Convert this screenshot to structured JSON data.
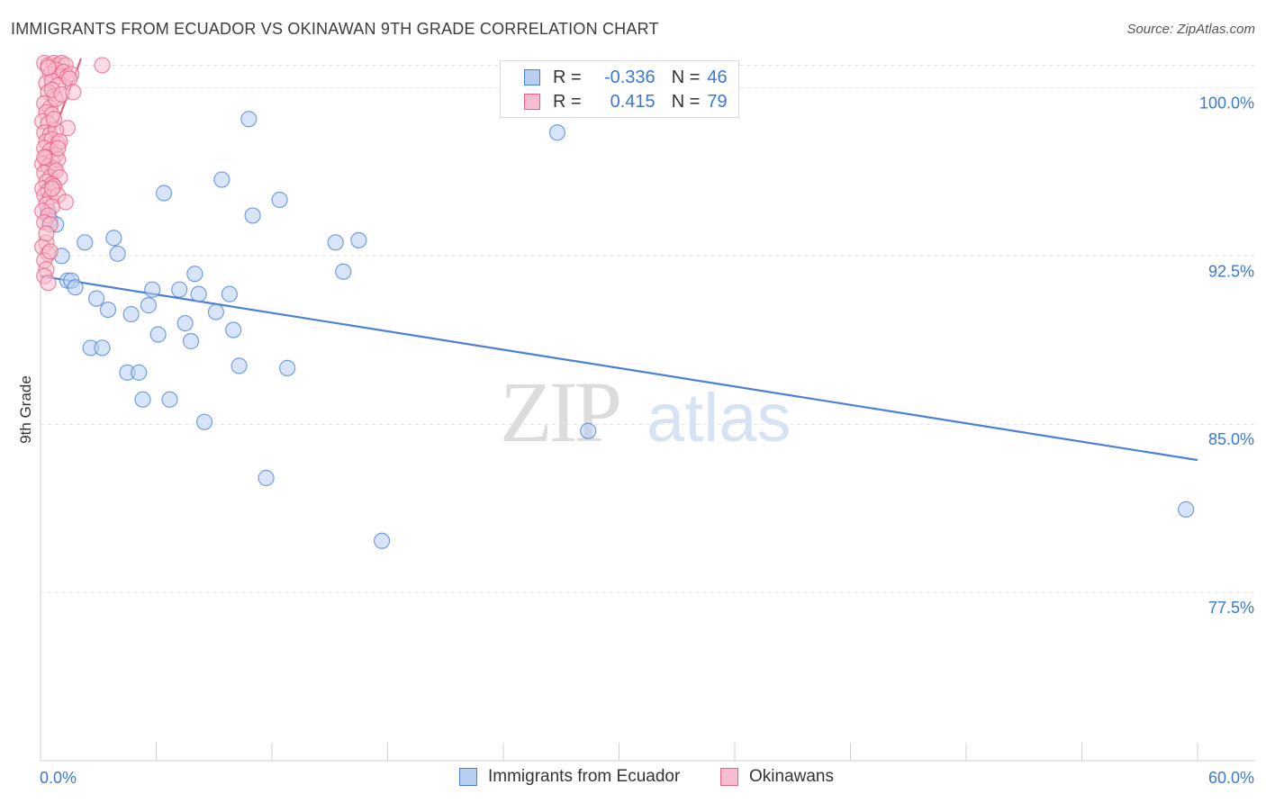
{
  "chart_data": {
    "type": "scatter",
    "title": "IMMIGRANTS FROM ECUADOR VS OKINAWAN 9TH GRADE CORRELATION CHART",
    "source": "Source: ZipAtlas.com",
    "watermark": {
      "zip": "ZIP",
      "atlas": "atlas"
    },
    "ylabel": "9th Grade",
    "xlim": [
      0,
      60
    ],
    "ylim": [
      70,
      101.5
    ],
    "x_tick_labels": [
      "0.0%",
      "60.0%"
    ],
    "y_ticks": [
      77.5,
      85.0,
      92.5,
      100.0
    ],
    "y_tick_labels": [
      "77.5%",
      "85.0%",
      "92.5%",
      "100.0%"
    ],
    "legend": {
      "r_label": "R =",
      "n_label": "N ="
    },
    "series": [
      {
        "name": "Immigrants from Ecuador",
        "color": "#4a80d6",
        "fill": "#b8cff2",
        "r": "-0.336",
        "n": "46",
        "trend": {
          "x0": 0,
          "y0": 91.6,
          "x1": 60,
          "y1": 83.4
        },
        "points": [
          [
            0.4,
            94.5
          ],
          [
            0.5,
            94.1
          ],
          [
            0.8,
            93.9
          ],
          [
            1.1,
            92.5
          ],
          [
            2.3,
            93.1
          ],
          [
            3.8,
            93.3
          ],
          [
            4.0,
            92.6
          ],
          [
            1.4,
            91.4
          ],
          [
            1.6,
            91.4
          ],
          [
            1.8,
            91.1
          ],
          [
            2.9,
            90.6
          ],
          [
            3.5,
            90.1
          ],
          [
            4.7,
            89.9
          ],
          [
            5.6,
            90.3
          ],
          [
            5.8,
            91.0
          ],
          [
            6.1,
            89.0
          ],
          [
            6.4,
            95.3
          ],
          [
            7.2,
            91.0
          ],
          [
            7.5,
            89.5
          ],
          [
            7.8,
            88.7
          ],
          [
            8.0,
            91.7
          ],
          [
            8.2,
            90.8
          ],
          [
            9.1,
            90.0
          ],
          [
            9.4,
            95.9
          ],
          [
            9.8,
            90.8
          ],
          [
            10.0,
            89.2
          ],
          [
            10.3,
            87.6
          ],
          [
            10.8,
            98.6
          ],
          [
            11.0,
            94.3
          ],
          [
            11.7,
            82.6
          ],
          [
            12.4,
            95.0
          ],
          [
            12.8,
            87.5
          ],
          [
            2.6,
            88.4
          ],
          [
            3.2,
            88.4
          ],
          [
            4.5,
            87.3
          ],
          [
            5.1,
            87.3
          ],
          [
            5.3,
            86.1
          ],
          [
            6.7,
            86.1
          ],
          [
            8.5,
            85.1
          ],
          [
            15.3,
            93.1
          ],
          [
            15.7,
            91.8
          ],
          [
            16.5,
            93.2
          ],
          [
            17.7,
            79.8
          ],
          [
            26.8,
            98.0
          ],
          [
            28.4,
            84.7
          ],
          [
            59.4,
            81.2
          ]
        ]
      },
      {
        "name": "Okinawans",
        "color": "#e8607f",
        "fill": "#f8bdd0",
        "r": "0.415",
        "n": "79",
        "trend": {
          "x0": 0,
          "y0": 96.4,
          "x1": 2.1,
          "y1": 101.3
        },
        "points": [
          [
            0.2,
            101.1
          ],
          [
            0.4,
            101.0
          ],
          [
            0.7,
            101.1
          ],
          [
            0.9,
            101.0
          ],
          [
            1.1,
            101.1
          ],
          [
            1.3,
            101.0
          ],
          [
            0.5,
            100.6
          ],
          [
            0.8,
            100.8
          ],
          [
            1.0,
            100.5
          ],
          [
            1.2,
            100.7
          ],
          [
            1.4,
            100.5
          ],
          [
            1.6,
            100.6
          ],
          [
            3.2,
            101.0
          ],
          [
            0.3,
            100.2
          ],
          [
            0.6,
            100.3
          ],
          [
            0.9,
            100.1
          ],
          [
            1.5,
            100.4
          ],
          [
            0.4,
            99.8
          ],
          [
            0.7,
            99.6
          ],
          [
            0.2,
            99.3
          ],
          [
            0.5,
            99.1
          ],
          [
            0.8,
            99.5
          ],
          [
            0.3,
            98.9
          ],
          [
            0.6,
            98.8
          ],
          [
            0.1,
            98.5
          ],
          [
            0.4,
            98.4
          ],
          [
            1.4,
            98.2
          ],
          [
            0.2,
            98.0
          ],
          [
            0.5,
            97.9
          ],
          [
            0.8,
            98.1
          ],
          [
            0.3,
            97.6
          ],
          [
            0.6,
            97.7
          ],
          [
            0.9,
            97.5
          ],
          [
            1.0,
            97.6
          ],
          [
            0.2,
            97.3
          ],
          [
            0.5,
            97.2
          ],
          [
            0.8,
            97.0
          ],
          [
            0.3,
            96.9
          ],
          [
            0.6,
            96.7
          ],
          [
            0.1,
            96.6
          ],
          [
            0.4,
            96.5
          ],
          [
            0.7,
            96.4
          ],
          [
            0.9,
            96.8
          ],
          [
            0.2,
            96.2
          ],
          [
            0.5,
            96.0
          ],
          [
            0.8,
            96.3
          ],
          [
            1.0,
            96.0
          ],
          [
            0.3,
            95.8
          ],
          [
            0.6,
            95.7
          ],
          [
            0.1,
            95.5
          ],
          [
            0.4,
            95.4
          ],
          [
            0.7,
            95.6
          ],
          [
            0.2,
            95.2
          ],
          [
            0.5,
            95.1
          ],
          [
            0.9,
            95.2
          ],
          [
            1.3,
            94.9
          ],
          [
            0.3,
            94.8
          ],
          [
            0.6,
            94.7
          ],
          [
            0.1,
            94.5
          ],
          [
            0.4,
            94.3
          ],
          [
            0.2,
            94.0
          ],
          [
            0.5,
            93.9
          ],
          [
            0.3,
            93.1
          ],
          [
            0.1,
            92.9
          ],
          [
            0.4,
            92.6
          ],
          [
            0.2,
            92.3
          ],
          [
            0.3,
            91.9
          ],
          [
            0.2,
            91.6
          ],
          [
            0.4,
            91.3
          ],
          [
            0.6,
            99.9
          ],
          [
            0.7,
            98.6
          ],
          [
            1.1,
            99.7
          ],
          [
            0.9,
            97.3
          ],
          [
            0.4,
            100.9
          ],
          [
            1.7,
            99.8
          ],
          [
            0.2,
            96.9
          ],
          [
            0.6,
            95.5
          ],
          [
            0.3,
            93.5
          ],
          [
            0.5,
            92.7
          ]
        ]
      }
    ]
  }
}
